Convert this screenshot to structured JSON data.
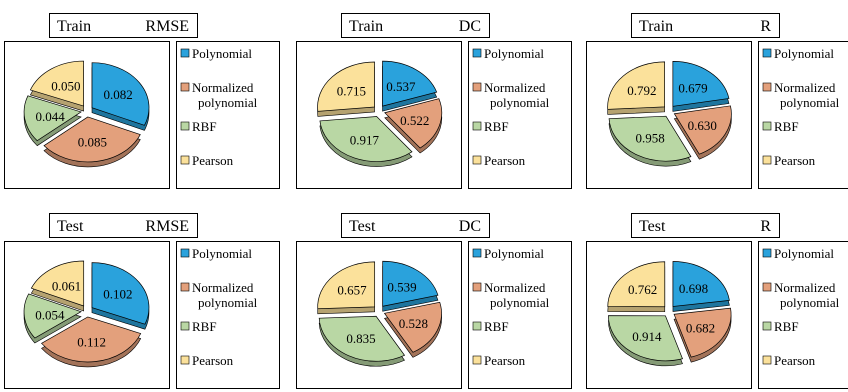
{
  "palette": {
    "Polynomial": "#2aa2dc",
    "Normalized polynomial": "#e3a07c",
    "RBF": "#b9d7a4",
    "Pearson": "#fbe19b",
    "outline": "#000000"
  },
  "chart_data": [
    {
      "type": "pie",
      "dataset": "Train",
      "metric": "RMSE",
      "slices": [
        {
          "label": "Polynomial",
          "value": 0.082,
          "display": "0.082"
        },
        {
          "label": "Normalized polynomial",
          "value": 0.085,
          "display": "0.085"
        },
        {
          "label": "RBF",
          "value": 0.044,
          "display": "0.044"
        },
        {
          "label": "Pearson",
          "value": 0.05,
          "display": "0.050"
        }
      ],
      "legend": [
        "Polynomial",
        "Normalized polynomial",
        "RBF",
        "Pearson"
      ]
    },
    {
      "type": "pie",
      "dataset": "Train",
      "metric": "DC",
      "slices": [
        {
          "label": "Polynomial",
          "value": 0.537,
          "display": "0.537"
        },
        {
          "label": "Normalized polynomial",
          "value": 0.522,
          "display": "0.522"
        },
        {
          "label": "RBF",
          "value": 0.917,
          "display": "0.917"
        },
        {
          "label": "Pearson",
          "value": 0.715,
          "display": "0.715"
        }
      ],
      "legend": [
        "Polynomial",
        "Normalized polynomial",
        "RBF",
        "Pearson"
      ]
    },
    {
      "type": "pie",
      "dataset": "Train",
      "metric": "R",
      "slices": [
        {
          "label": "Polynomial",
          "value": 0.679,
          "display": "0.679"
        },
        {
          "label": "Normalized polynomial",
          "value": 0.63,
          "display": "0.630"
        },
        {
          "label": "RBF",
          "value": 0.958,
          "display": "0.958"
        },
        {
          "label": "Pearson",
          "value": 0.792,
          "display": "0.792"
        }
      ],
      "legend": [
        "Polynomial",
        "Normalized polynomial",
        "RBF",
        "Pearson"
      ]
    },
    {
      "type": "pie",
      "dataset": "Test",
      "metric": "RMSE",
      "slices": [
        {
          "label": "Polynomial",
          "value": 0.102,
          "display": "0.102"
        },
        {
          "label": "Normalized polynomial",
          "value": 0.112,
          "display": "0.112"
        },
        {
          "label": "RBF",
          "value": 0.054,
          "display": "0.054"
        },
        {
          "label": "Pearson",
          "value": 0.061,
          "display": "0.061"
        }
      ],
      "legend": [
        "Polynomial",
        "Normalized polynomial",
        "RBF",
        "Pearson"
      ]
    },
    {
      "type": "pie",
      "dataset": "Test",
      "metric": "DC",
      "slices": [
        {
          "label": "Polynomial",
          "value": 0.539,
          "display": "0.539"
        },
        {
          "label": "Normalized polynomial",
          "value": 0.528,
          "display": "0.528"
        },
        {
          "label": "RBF",
          "value": 0.835,
          "display": "0.835"
        },
        {
          "label": "Pearson",
          "value": 0.657,
          "display": "0.657"
        }
      ],
      "legend": [
        "Polynomial",
        "Normalized polynomial",
        "RBF",
        "Pearson"
      ]
    },
    {
      "type": "pie",
      "dataset": "Test",
      "metric": "R",
      "slices": [
        {
          "label": "Polynomial",
          "value": 0.698,
          "display": "0.698"
        },
        {
          "label": "Normalized polynomial",
          "value": 0.682,
          "display": "0.682"
        },
        {
          "label": "RBF",
          "value": 0.914,
          "display": "0.914"
        },
        {
          "label": "Pearson",
          "value": 0.762,
          "display": "0.762"
        }
      ],
      "legend": [
        "Polynomial",
        "Normalized polynomial",
        "RBF",
        "Pearson"
      ]
    }
  ]
}
